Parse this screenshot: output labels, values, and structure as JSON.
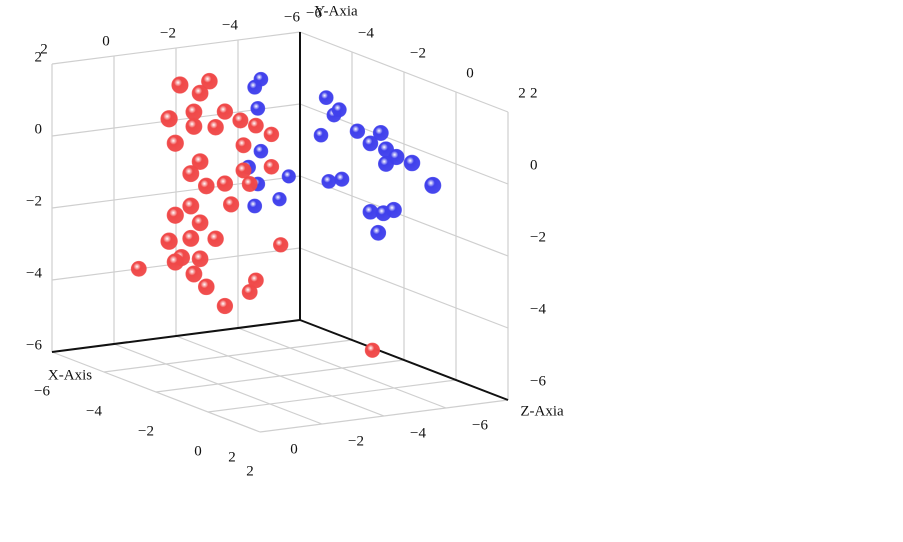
{
  "chart_data": {
    "type": "scatter3d",
    "xlabel": "X-Axis",
    "ylabel": "Y-Axia",
    "zlabel": "Z-Axia",
    "xlim": [
      -6,
      2
    ],
    "ylim": [
      -6,
      2
    ],
    "zlim": [
      -6,
      2
    ],
    "xticks": [
      {
        "value": -6,
        "label": "−6"
      },
      {
        "value": -4,
        "label": "−4"
      },
      {
        "value": -2,
        "label": "−2"
      },
      0,
      2
    ],
    "yticks": [
      {
        "value": -6,
        "label": "−6"
      },
      {
        "value": -4,
        "label": "−4"
      },
      {
        "value": -2,
        "label": "−2"
      },
      0,
      2
    ],
    "zticks": [
      {
        "value": -6,
        "label": "−6"
      },
      {
        "value": -4,
        "label": "−4"
      },
      {
        "value": -2,
        "label": "−2"
      },
      0,
      2
    ],
    "grid": true,
    "series": [
      {
        "color": "#f04848",
        "x": [
          -0.45,
          -1.4,
          -1.1,
          -0.9,
          -1.9,
          -0.1,
          -0.9,
          -1.6,
          -2.4,
          -2.9,
          -3.4,
          -2.5,
          -0.3,
          -1.1,
          -0.8,
          -2.5,
          -3.4,
          -1.9,
          -1.3,
          -2.7,
          -0.8,
          -2.1,
          -0.3,
          -1.1,
          -0.8,
          -0.1,
          -1.6,
          -0.5,
          -1.1,
          -3.7,
          -0.3,
          -0.9,
          -1.3,
          -2.9,
          -2.7,
          -1.9,
          -0.8,
          -5.4
        ],
        "y": [
          1.7,
          1.7,
          1.4,
          0.9,
          0.8,
          0.8,
          0.5,
          0.4,
          0.5,
          0.3,
          0.0,
          -0.2,
          0.1,
          -0.5,
          -0.8,
          -0.9,
          -0.9,
          -1.2,
          -1.2,
          -1.3,
          -1.7,
          -1.8,
          -1.9,
          -2.2,
          -2.6,
          -2.6,
          -2.7,
          -3.1,
          -3.2,
          -3.1,
          -3.2,
          -3.6,
          -4.0,
          -4.0,
          -4.3,
          -4.6,
          -4.0,
          -5.8
        ],
        "z": [
          -4,
          -4,
          -4,
          -4,
          -4,
          -4,
          -4,
          -4,
          -4,
          -4,
          -4,
          -4,
          -4,
          -4,
          -4,
          -4,
          -4,
          -4,
          -4,
          -4,
          -4,
          -4,
          -4,
          -4,
          -4,
          -4,
          -4,
          -4,
          -4,
          -4,
          -4,
          -4,
          -4,
          -4,
          -4,
          -4,
          -6,
          -2.5
        ]
      },
      {
        "color": "#4040ec",
        "x": [
          -3.9,
          -3.7,
          -3.8,
          -3.9,
          -3.5,
          -4.8,
          -3.8,
          -3.7,
          -4.5,
          -5,
          -5,
          -5,
          -5,
          -5,
          -5,
          -5,
          -5,
          -5,
          -5,
          -5,
          -5,
          -5,
          -5,
          -5,
          -5,
          -5,
          -5
        ],
        "y": [
          1.2,
          1.0,
          0.4,
          -0.8,
          -1.2,
          -1.6,
          -1.7,
          -2.3,
          -2.2,
          0.9,
          0.7,
          0.5,
          -0.2,
          0.3,
          0.5,
          0.1,
          0.1,
          0.0,
          0.0,
          -0.3,
          -0.4,
          -1.4,
          -1.2,
          -1.8,
          -1.7,
          -1.5,
          -2.3
        ],
        "z": [
          -5,
          -5,
          -5,
          -5,
          -5,
          -5,
          -5,
          -5,
          -5,
          -3.8,
          -3.3,
          -3.5,
          -4.0,
          -2.6,
          -1.7,
          -2.1,
          -1.5,
          -1.1,
          -0.5,
          -1.5,
          0.3,
          -3.7,
          -3.2,
          -2.1,
          -1.6,
          -1.2,
          -1.8
        ]
      }
    ]
  }
}
